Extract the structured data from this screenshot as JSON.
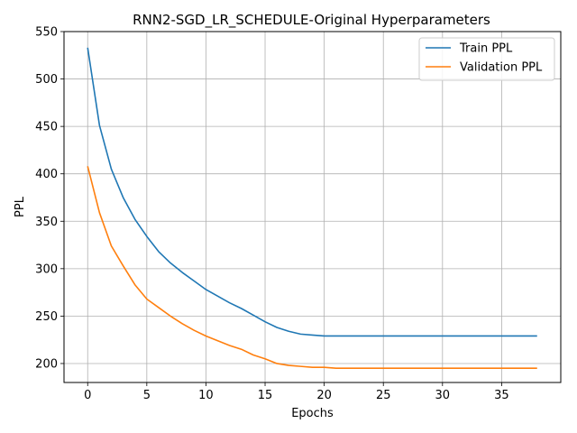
{
  "chart_data": {
    "type": "line",
    "title": "RNN2-SGD_LR_SCHEDULE-Original Hyperparameters",
    "xlabel": "Epochs",
    "ylabel": "PPL",
    "xlim": [
      -2,
      40
    ],
    "ylim": [
      180,
      550
    ],
    "xticks": [
      0,
      5,
      10,
      15,
      20,
      25,
      30,
      35
    ],
    "yticks": [
      200,
      250,
      300,
      350,
      400,
      450,
      500,
      550
    ],
    "grid": true,
    "legend_position": "top-right",
    "x": [
      0,
      1,
      2,
      3,
      4,
      5,
      6,
      7,
      8,
      9,
      10,
      11,
      12,
      13,
      14,
      15,
      16,
      17,
      18,
      19,
      20,
      21,
      22,
      23,
      24,
      25,
      26,
      27,
      28,
      29,
      30,
      31,
      32,
      33,
      34,
      35,
      36,
      37,
      38
    ],
    "series": [
      {
        "name": "Train PPL",
        "color": "#1f77b4",
        "values": [
          533,
          451,
          405,
          375,
          352,
          334,
          318,
          306,
          296,
          287,
          278,
          271,
          264,
          258,
          251,
          244,
          238,
          234,
          231,
          230,
          229,
          229,
          229,
          229,
          229,
          229,
          229,
          229,
          229,
          229,
          229,
          229,
          229,
          229,
          229,
          229,
          229,
          229,
          229
        ]
      },
      {
        "name": "Validation PPL",
        "color": "#ff7f0e",
        "values": [
          408,
          359,
          324,
          303,
          283,
          268,
          259,
          250,
          242,
          235,
          229,
          224,
          219,
          215,
          209,
          205,
          200,
          198,
          197,
          196,
          196,
          195,
          195,
          195,
          195,
          195,
          195,
          195,
          195,
          195,
          195,
          195,
          195,
          195,
          195,
          195,
          195,
          195,
          195
        ]
      }
    ]
  }
}
